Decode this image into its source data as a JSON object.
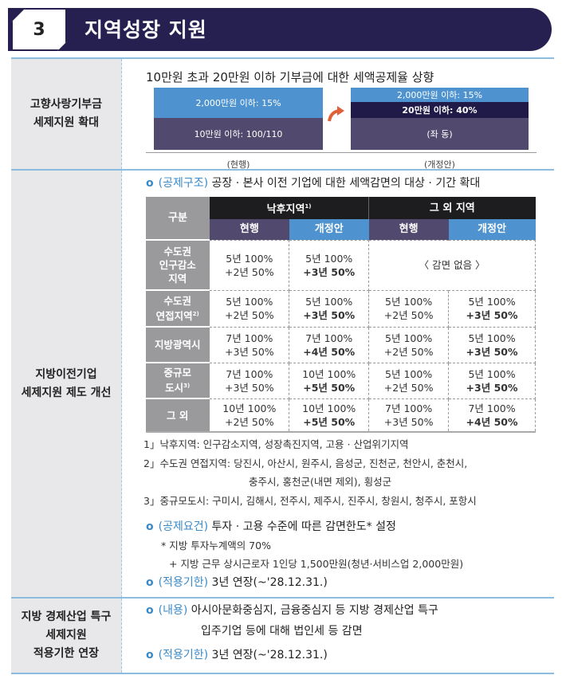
{
  "header": {
    "number": "3",
    "title": "지역성장 지원"
  },
  "section1": {
    "label_lines": [
      "고향사랑기부금",
      "세제지원 확대"
    ],
    "heading": "10만원 초과 20만원 이하 기부금에 대한 세액공제율 상향",
    "current": {
      "top": "2,000만원 이하: 15%",
      "bottom": "10만원 이하: 100/110",
      "caption": "(현행)"
    },
    "proposed": {
      "top": "2,000만원 이하: 15%",
      "middle": "20만원 이하: 40%",
      "bottom": "(좌 동)",
      "caption": "(개정안)"
    },
    "arrow_icon": "curved-arrow-right",
    "colors": {
      "blue": "#4e93cf",
      "purple": "#524a6e",
      "navy": "#1f1a48"
    }
  },
  "section2": {
    "label_lines": [
      "지방이전기업",
      "세제지원 제도 개선"
    ],
    "item1": {
      "tag": "(공제구조)",
      "text": "공장 · 본사 이전 기업에 대한 세액감면의 대상 · 기간 확대"
    },
    "table": {
      "corner": "구분",
      "groups": [
        {
          "label": "낙후지역",
          "sup": "1)"
        },
        {
          "label": "그 외 지역",
          "sup": ""
        }
      ],
      "subheads": [
        "현행",
        "개정안",
        "현행",
        "개정안"
      ],
      "rows": [
        {
          "label": [
            "수도권",
            "인구감소",
            "지역"
          ],
          "sup": "",
          "cells": [
            [
              "5년 100%",
              "+2년 50%"
            ],
            [
              "5년 100%",
              "+3년 50%"
            ]
          ],
          "merged": "〈 감면 없음 〉"
        },
        {
          "label": [
            "수도권",
            "연접지역"
          ],
          "sup": "2)",
          "cells": [
            [
              "5년 100%",
              "+2년 50%"
            ],
            [
              "5년 100%",
              "+3년 50%"
            ],
            [
              "5년 100%",
              "+2년 50%"
            ],
            [
              "5년 100%",
              "+3년 50%"
            ]
          ]
        },
        {
          "label": [
            "지방광역시"
          ],
          "sup": "",
          "cells": [
            [
              "7년 100%",
              "+3년 50%"
            ],
            [
              "7년 100%",
              "+4년 50%"
            ],
            [
              "5년 100%",
              "+2년 50%"
            ],
            [
              "5년 100%",
              "+3년 50%"
            ]
          ]
        },
        {
          "label": [
            "중규모",
            "도시"
          ],
          "sup": "3)",
          "cells": [
            [
              "7년 100%",
              "+3년 50%"
            ],
            [
              "10년 100%",
              "+5년 50%"
            ],
            [
              "5년 100%",
              "+2년 50%"
            ],
            [
              "5년 100%",
              "+3년 50%"
            ]
          ]
        },
        {
          "label": [
            "그 외"
          ],
          "sup": "",
          "cells": [
            [
              "10년 100%",
              "+2년 50%"
            ],
            [
              "10년 100%",
              "+5년 50%"
            ],
            [
              "7년 100%",
              "+3년 50%"
            ],
            [
              "7년 100%",
              "+4년 50%"
            ]
          ]
        }
      ]
    },
    "notes": [
      "1」낙후지역: 인구감소지역, 성장촉진지역, 고용 · 산업위기지역",
      "2」수도권 연접지역: 당진시, 아산시, 원주시, 음성군, 진천군, 천안시, 춘천시,",
      "충주시, 홍천군(내면 제외), 횡성군",
      "3」중규모도시: 구미시, 김해시, 전주시, 제주시, 진주시, 창원시, 청주시, 포항시"
    ],
    "item2": {
      "tag": "(공제요건)",
      "text": "투자 · 고용 수준에 따른 감면한도* 설정",
      "sub": [
        "* 지방 투자누계액의 70%",
        "+ 지방 근무 상시근로자 1인당 1,500만원(청년·서비스업 2,000만원)"
      ]
    },
    "item3": {
      "tag": "(적용기한)",
      "text": "3년 연장(~'28.12.31.)"
    }
  },
  "section3": {
    "label_lines": [
      "지방 경제산업 특구",
      "세제지원",
      "적용기한 연장"
    ],
    "item1": {
      "tag": "(내용)",
      "text": "아시아문화중심지, 금융중심지 등 지방 경제산업 특구",
      "text2": "입주기업 등에 대해 법인세 등 감면"
    },
    "item2": {
      "tag": "(적용기한)",
      "text": "3년 연장(~'28.12.31.)"
    }
  },
  "bullet": "o"
}
